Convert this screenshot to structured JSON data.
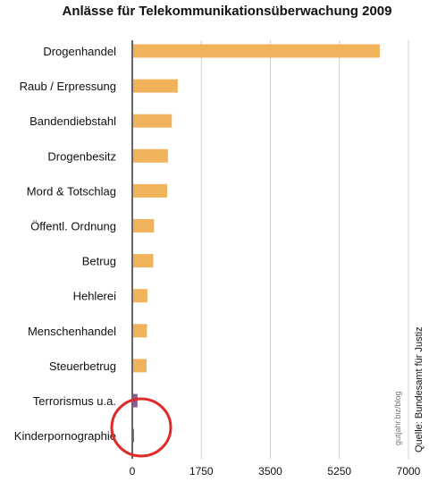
{
  "chart_data": {
    "type": "bar",
    "orientation": "horizontal",
    "title": "Anlässe für Telekommunikationsüberwachung 2009",
    "categories": [
      "Drogenhandel",
      "Raub / Erpressung",
      "Bandendiebstahl",
      "Drogenbesitz",
      "Mord & Totschlag",
      "Öffentl. Ordnung",
      "Betrug",
      "Hehlerei",
      "Menschenhandel",
      "Steuerbetrug",
      "Terrorismus u.a.",
      "Kinderpornographie"
    ],
    "values": [
      6250,
      1130,
      980,
      880,
      860,
      530,
      510,
      360,
      350,
      340,
      110,
      10
    ],
    "bar_colors": [
      "#f0b25a",
      "#f0b25a",
      "#f0b25a",
      "#f0b25a",
      "#f0b25a",
      "#f0b25a",
      "#f0b25a",
      "#f0b25a",
      "#f0b25a",
      "#f0b25a",
      "#8e5a9e",
      "#8e5a9e"
    ],
    "xlim": [
      0,
      7000
    ],
    "xticks": [
      "0",
      "1750",
      "3500",
      "5250",
      "7000"
    ],
    "grid": true,
    "watermark": "gutjahr.biz/blog",
    "source": "Quelle: Bundesamt für Justiz",
    "annotation": "red circle around Terrorismus u.a. and Kinderpornographie"
  }
}
